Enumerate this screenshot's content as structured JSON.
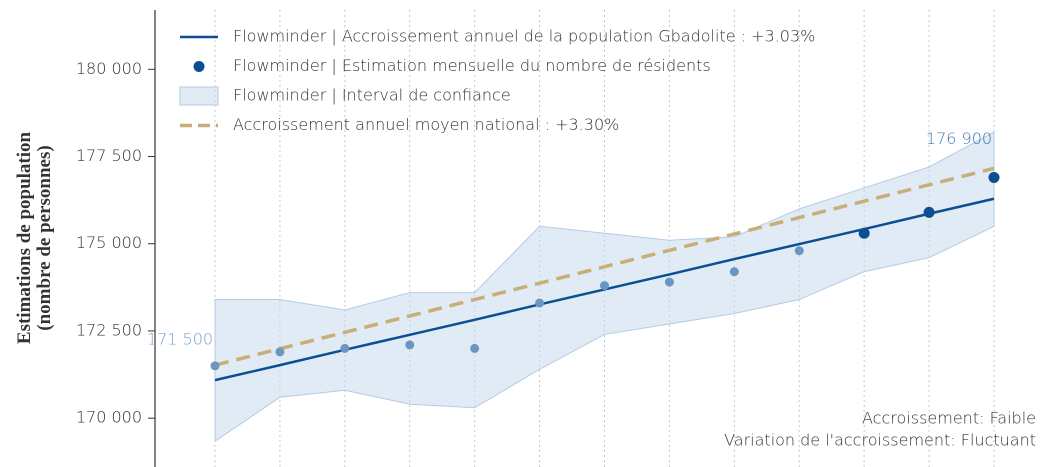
{
  "chart_data": {
    "type": "line",
    "y_label": [
      "Estimations de population",
      "(nombre de personnes)"
    ],
    "categories": [
      null,
      null,
      null,
      null,
      null,
      null,
      null,
      null,
      null,
      null,
      null,
      null,
      null
    ],
    "ylim": [
      168600,
      181700
    ],
    "yticks": [
      {
        "value": 170000,
        "label": "170 000"
      },
      {
        "value": 172500,
        "label": "172 500"
      },
      {
        "value": 175000,
        "label": "175 000"
      },
      {
        "value": 177500,
        "label": "177 500"
      },
      {
        "value": 180000,
        "label": "180 000"
      }
    ],
    "x_grid": true,
    "series": [
      {
        "name": "Flowminder | Accroissement annuel de la population Gbadolite : +3.03%",
        "type": "line",
        "color": "#0b4f92",
        "values": [
          171090,
          171520,
          171960,
          172390,
          172820,
          173260,
          173690,
          174120,
          174560,
          174990,
          175420,
          175860,
          176290
        ]
      },
      {
        "name": "Flowminder | Estimation mensuelle du nombre de résidents",
        "type": "scatter",
        "color": "#0b4f92",
        "colors": [
          "#6b96c3",
          "#6b96c3",
          "#6b96c3",
          "#6b96c3",
          "#6b96c3",
          "#6b96c3",
          "#6b96c3",
          "#6b96c3",
          "#6b96c3",
          "#6b96c3",
          "#0b4f92",
          "#0b4f92",
          "#0b4f92"
        ],
        "values": [
          171500,
          171900,
          172000,
          172100,
          172000,
          173300,
          173800,
          173900,
          174200,
          174800,
          175300,
          175900,
          176900
        ],
        "value_labels": [
          "171 500",
          null,
          null,
          null,
          null,
          null,
          null,
          null,
          null,
          null,
          null,
          null,
          "176 900"
        ],
        "value_label_colors": [
          "#7aa3cc",
          null,
          null,
          null,
          null,
          null,
          null,
          null,
          null,
          null,
          null,
          null,
          "#3f78b1"
        ]
      },
      {
        "name": "Flowminder | Interval de confiance",
        "type": "band",
        "color": "#c9daec",
        "upper": [
          173400,
          173400,
          173100,
          173600,
          173600,
          175500,
          175300,
          175100,
          175200,
          176000,
          176600,
          177200,
          178200
        ],
        "lower": [
          169340,
          170600,
          170800,
          170400,
          170300,
          171400,
          172400,
          172700,
          173000,
          173400,
          174200,
          174600,
          175500
        ]
      },
      {
        "name": "Accroissement annuel moyen national : +3.30%",
        "type": "line",
        "dashed": true,
        "color": "#c8ae78",
        "values": [
          171520,
          171990,
          172460,
          172930,
          173400,
          173870,
          174340,
          174810,
          175280,
          175750,
          176220,
          176690,
          177160
        ]
      }
    ],
    "annotations": [
      "Accroissement: Faible",
      "Variation de l'accroissement: Fluctuant"
    ]
  }
}
